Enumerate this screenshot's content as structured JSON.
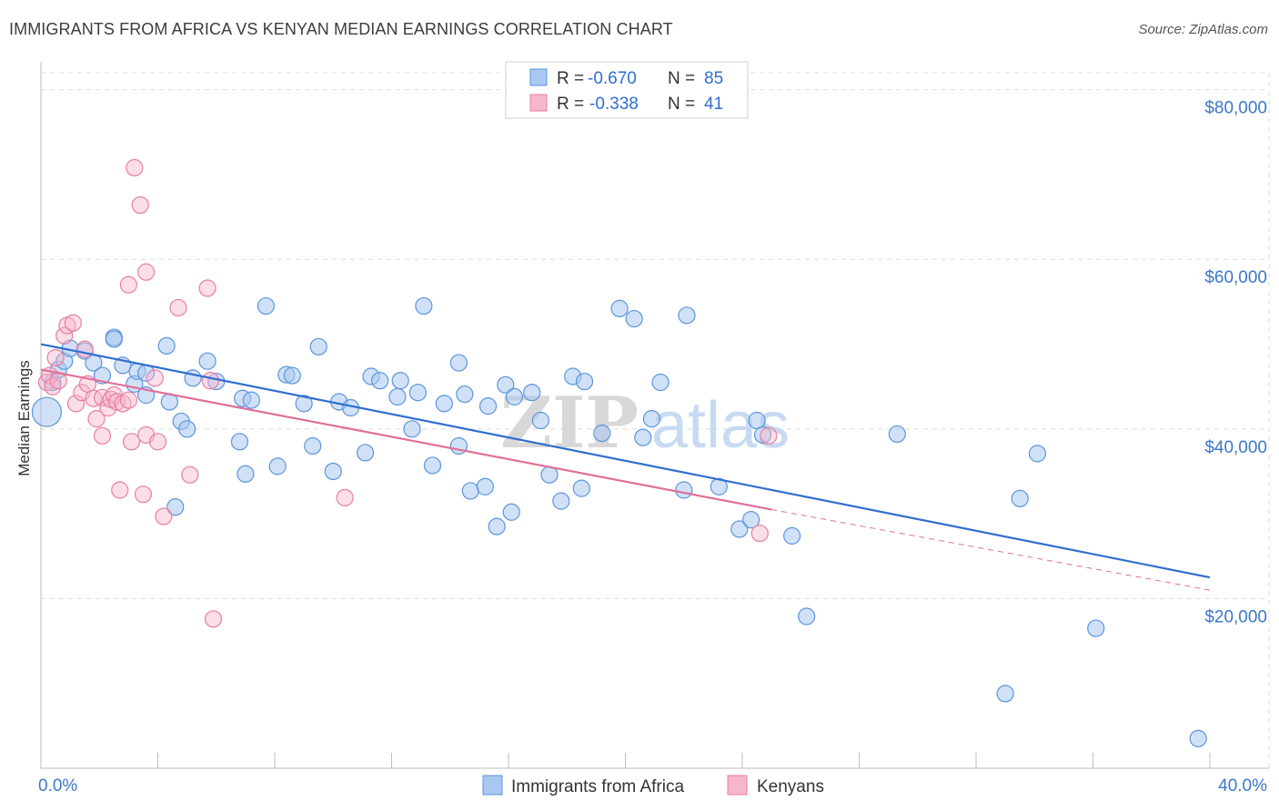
{
  "header": {
    "title": "IMMIGRANTS FROM AFRICA VS KENYAN MEDIAN EARNINGS CORRELATION CHART",
    "source": "Source: ZipAtlas.com"
  },
  "watermark": {
    "zip": "ZIP",
    "atlas": "atlas"
  },
  "colors": {
    "blue_fill": "#a9c8f0",
    "blue_stroke": "#5b95dc",
    "blue_line": "#2f6fd0",
    "pink_fill": "#f6b6cb",
    "pink_stroke": "#e77fa2",
    "pink_line": "#e06f98",
    "axis_text": "#3b78c8",
    "grid": "#dcdcdc"
  },
  "legend": {
    "rows": [
      {
        "r_label": "R =",
        "r_value": "-0.670",
        "n_label": "N =",
        "n_value": "85",
        "series": "blue"
      },
      {
        "r_label": "R =",
        "r_value": "-0.338",
        "n_label": "N =",
        "n_value": "41",
        "series": "pink"
      }
    ]
  },
  "chart_data": {
    "type": "scatter",
    "title": "IMMIGRANTS FROM AFRICA VS KENYAN MEDIAN EARNINGS CORRELATION CHART",
    "xlabel": "",
    "ylabel": "Median Earnings",
    "xlim": [
      0,
      40
    ],
    "ylim": [
      0,
      82000
    ],
    "x_tick_labels": [
      "0.0%",
      "40.0%"
    ],
    "y_ticks": [
      20000,
      40000,
      60000,
      80000
    ],
    "y_tick_labels": [
      "$20,000",
      "$40,000",
      "$60,000",
      "$80,000"
    ],
    "legend_position": "top-center",
    "series": [
      {
        "name": "Immigrants from Africa",
        "color": "blue",
        "trend": {
          "x": [
            0,
            40
          ],
          "y": [
            50000,
            22500
          ]
        },
        "points": [
          [
            0.2,
            42000,
            16
          ],
          [
            0.4,
            45500,
            9
          ],
          [
            0.6,
            47000,
            9
          ],
          [
            0.8,
            48000,
            9
          ],
          [
            1.0,
            49500,
            9
          ],
          [
            1.5,
            49200,
            9
          ],
          [
            1.8,
            47800,
            9
          ],
          [
            2.1,
            46300,
            9
          ],
          [
            2.5,
            50800,
            9
          ],
          [
            2.5,
            50600,
            9
          ],
          [
            2.8,
            47500,
            9
          ],
          [
            3.2,
            45300,
            9
          ],
          [
            3.3,
            46800,
            9
          ],
          [
            3.6,
            46600,
            9
          ],
          [
            3.6,
            44000,
            9
          ],
          [
            4.3,
            49800,
            9
          ],
          [
            4.4,
            43200,
            9
          ],
          [
            4.8,
            40900,
            9
          ],
          [
            5.0,
            40000,
            9
          ],
          [
            5.2,
            46000,
            9
          ],
          [
            5.7,
            48000,
            9
          ],
          [
            6.0,
            45600,
            9
          ],
          [
            6.8,
            38500,
            9
          ],
          [
            6.9,
            43600,
            9
          ],
          [
            7.2,
            43400,
            9
          ],
          [
            7.7,
            54500,
            9
          ],
          [
            8.1,
            35600,
            9
          ],
          [
            8.4,
            46400,
            9
          ],
          [
            8.6,
            46300,
            9
          ],
          [
            9.0,
            43000,
            9
          ],
          [
            9.3,
            38000,
            9
          ],
          [
            9.5,
            49700,
            9
          ],
          [
            10.0,
            35000,
            9
          ],
          [
            10.2,
            43200,
            9
          ],
          [
            10.6,
            42500,
            9
          ],
          [
            11.1,
            37200,
            9
          ],
          [
            11.3,
            46200,
            9
          ],
          [
            11.6,
            45700,
            9
          ],
          [
            12.2,
            43800,
            9
          ],
          [
            12.3,
            45700,
            9
          ],
          [
            12.7,
            40000,
            9
          ],
          [
            12.9,
            44300,
            9
          ],
          [
            13.1,
            54500,
            9
          ],
          [
            13.4,
            35700,
            9
          ],
          [
            13.8,
            43000,
            9
          ],
          [
            14.3,
            47800,
            9
          ],
          [
            14.3,
            38000,
            9
          ],
          [
            14.5,
            44100,
            9
          ],
          [
            14.7,
            32700,
            9
          ],
          [
            15.2,
            33200,
            9
          ],
          [
            15.3,
            42700,
            9
          ],
          [
            15.9,
            45200,
            9
          ],
          [
            16.1,
            30200,
            9
          ],
          [
            16.2,
            43800,
            9
          ],
          [
            16.8,
            44300,
            9
          ],
          [
            17.1,
            41000,
            9
          ],
          [
            17.4,
            34600,
            9
          ],
          [
            17.8,
            31500,
            9
          ],
          [
            18.2,
            46200,
            9
          ],
          [
            18.5,
            33000,
            9
          ],
          [
            18.6,
            45600,
            9
          ],
          [
            19.2,
            39500,
            9
          ],
          [
            19.8,
            54200,
            9
          ],
          [
            20.3,
            53000,
            9
          ],
          [
            20.6,
            39000,
            9
          ],
          [
            20.9,
            41200,
            9
          ],
          [
            21.2,
            45500,
            9
          ],
          [
            22.0,
            32800,
            9
          ],
          [
            22.1,
            53400,
            9
          ],
          [
            23.2,
            33200,
            9
          ],
          [
            23.9,
            28200,
            9
          ],
          [
            24.3,
            29300,
            9
          ],
          [
            24.5,
            41000,
            9
          ],
          [
            24.7,
            39300,
            9
          ],
          [
            25.7,
            27400,
            9
          ],
          [
            26.2,
            17900,
            9
          ],
          [
            29.3,
            39400,
            9
          ],
          [
            33.0,
            8800,
            9
          ],
          [
            33.5,
            31800,
            9
          ],
          [
            34.1,
            37100,
            9
          ],
          [
            36.1,
            16500,
            9
          ],
          [
            39.6,
            3500,
            9
          ],
          [
            4.6,
            30800,
            9
          ],
          [
            15.6,
            28500,
            9
          ],
          [
            7.0,
            34700,
            9
          ]
        ]
      },
      {
        "name": "Kenyans",
        "color": "pink",
        "trend": {
          "x": [
            0,
            25
          ],
          "y": [
            47000,
            30500
          ]
        },
        "trend_extension": {
          "x": [
            25,
            40
          ],
          "y": [
            30500,
            21000
          ]
        },
        "points": [
          [
            0.2,
            45500,
            9
          ],
          [
            0.3,
            46300,
            9
          ],
          [
            0.4,
            45000,
            9
          ],
          [
            0.5,
            48400,
            9
          ],
          [
            0.6,
            45700,
            9
          ],
          [
            0.8,
            51000,
            9
          ],
          [
            0.9,
            52200,
            9
          ],
          [
            1.1,
            52500,
            9
          ],
          [
            1.2,
            43000,
            9
          ],
          [
            1.4,
            44300,
            9
          ],
          [
            1.5,
            49400,
            9
          ],
          [
            1.6,
            45300,
            9
          ],
          [
            1.8,
            43600,
            9
          ],
          [
            1.9,
            41200,
            9
          ],
          [
            2.1,
            43700,
            9
          ],
          [
            2.1,
            39200,
            9
          ],
          [
            2.3,
            42500,
            9
          ],
          [
            2.4,
            43500,
            9
          ],
          [
            2.5,
            44000,
            9
          ],
          [
            2.6,
            43200,
            9
          ],
          [
            2.7,
            32800,
            9
          ],
          [
            2.8,
            43000,
            9
          ],
          [
            3.0,
            43400,
            9
          ],
          [
            3.0,
            57000,
            9
          ],
          [
            3.1,
            38500,
            9
          ],
          [
            3.2,
            70800,
            9
          ],
          [
            3.4,
            66400,
            9
          ],
          [
            3.5,
            32300,
            9
          ],
          [
            3.6,
            39300,
            9
          ],
          [
            3.6,
            58500,
            9
          ],
          [
            3.9,
            46000,
            9
          ],
          [
            4.0,
            38500,
            9
          ],
          [
            4.2,
            29700,
            9
          ],
          [
            4.7,
            54300,
            9
          ],
          [
            5.1,
            34600,
            9
          ],
          [
            5.7,
            56600,
            9
          ],
          [
            5.8,
            45700,
            9
          ],
          [
            5.9,
            17600,
            9
          ],
          [
            10.4,
            31900,
            9
          ],
          [
            24.6,
            27700,
            9
          ],
          [
            24.9,
            39200,
            9
          ]
        ]
      }
    ]
  },
  "bottom_legend": {
    "items": [
      {
        "label": "Immigrants from Africa",
        "series": "blue"
      },
      {
        "label": "Kenyans",
        "series": "pink"
      }
    ]
  }
}
